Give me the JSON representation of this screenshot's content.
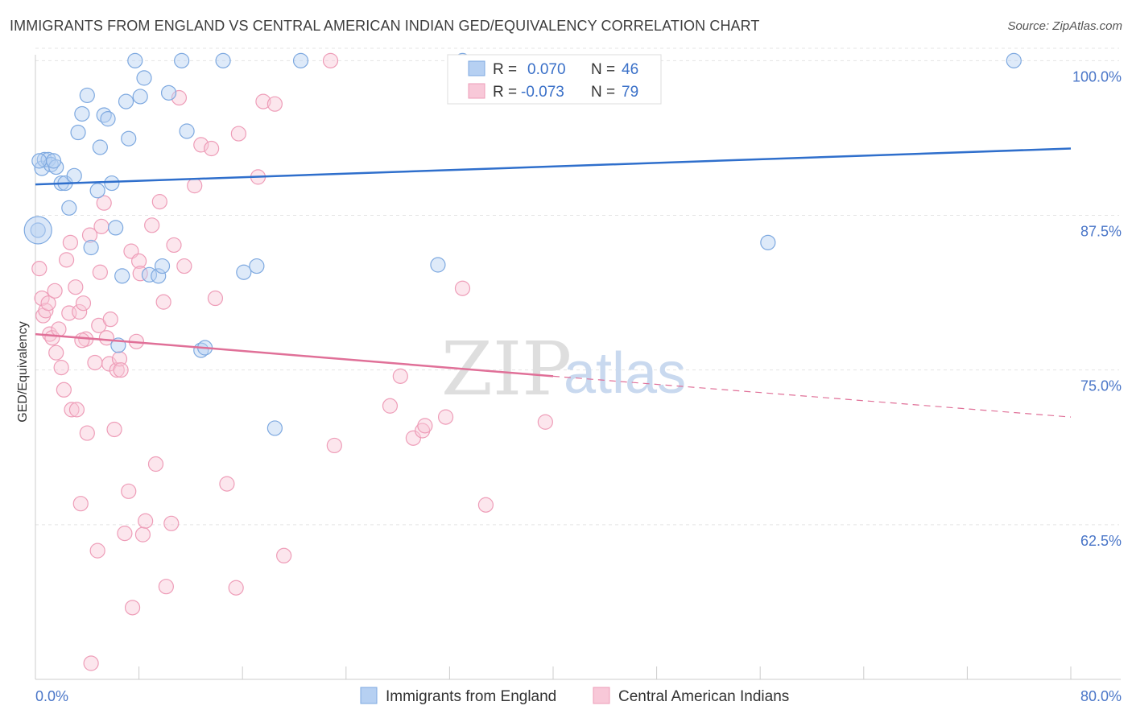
{
  "header": {
    "title": "IMMIGRANTS FROM ENGLAND VS CENTRAL AMERICAN INDIAN GED/EQUIVALENCY CORRELATION CHART",
    "source": "Source: ZipAtlas.com"
  },
  "watermark": {
    "zip": "ZIP",
    "atlas": "atlas"
  },
  "legend": {
    "r_label": "R =",
    "n_label": "N =",
    "rows": [
      {
        "r": "0.070",
        "n": "46"
      },
      {
        "r": "-0.073",
        "n": "79"
      }
    ]
  },
  "chart_data": {
    "type": "scatter",
    "title": "IMMIGRANTS FROM ENGLAND VS CENTRAL AMERICAN INDIAN GED/EQUIVALENCY CORRELATION CHART",
    "xlabel": "",
    "ylabel": "GED/Equivalency",
    "xlim": [
      0,
      80
    ],
    "ylim": [
      50,
      101
    ],
    "x_tick_labels": [
      "0.0%",
      "80.0%"
    ],
    "y_ticks": [
      62.5,
      75.0,
      87.5,
      100.0
    ],
    "y_tick_labels": [
      "62.5%",
      "75.0%",
      "87.5%",
      "100.0%"
    ],
    "grid": true,
    "legend_position": "top-center",
    "series": [
      {
        "name": "Immigrants from England",
        "color": "#7eaee6",
        "line_color": "#2f6fcc",
        "r": 0.07,
        "n": 46,
        "trend": {
          "x": [
            0,
            80
          ],
          "y": [
            90.0,
            92.9
          ]
        },
        "points": [
          [
            0.2,
            86.3
          ],
          [
            0.5,
            91.3
          ],
          [
            0.7,
            92.0
          ],
          [
            1.0,
            92.0
          ],
          [
            1.2,
            91.6
          ],
          [
            1.6,
            91.4
          ],
          [
            2.0,
            90.1
          ],
          [
            2.3,
            90.1
          ],
          [
            2.6,
            88.1
          ],
          [
            3.0,
            90.7
          ],
          [
            3.3,
            94.2
          ],
          [
            3.6,
            95.7
          ],
          [
            4.0,
            97.2
          ],
          [
            4.3,
            84.9
          ],
          [
            4.8,
            89.5
          ],
          [
            5.0,
            93.0
          ],
          [
            5.3,
            95.6
          ],
          [
            5.6,
            95.3
          ],
          [
            5.9,
            90.1
          ],
          [
            6.2,
            86.5
          ],
          [
            6.4,
            77.0
          ],
          [
            6.7,
            82.6
          ],
          [
            7.2,
            93.7
          ],
          [
            7.0,
            96.7
          ],
          [
            7.7,
            100.0
          ],
          [
            8.1,
            97.1
          ],
          [
            8.4,
            98.6
          ],
          [
            8.8,
            82.7
          ],
          [
            9.5,
            82.6
          ],
          [
            9.8,
            83.4
          ],
          [
            10.3,
            97.4
          ],
          [
            11.3,
            100.0
          ],
          [
            11.7,
            94.3
          ],
          [
            12.8,
            76.6
          ],
          [
            13.1,
            76.8
          ],
          [
            14.5,
            100.0
          ],
          [
            16.1,
            82.9
          ],
          [
            17.1,
            83.4
          ],
          [
            18.5,
            70.3
          ],
          [
            20.5,
            100.0
          ],
          [
            31.1,
            83.5
          ],
          [
            33.0,
            100.0
          ],
          [
            56.6,
            85.3
          ],
          [
            75.6,
            100.0
          ],
          [
            0.3,
            91.9
          ],
          [
            1.4,
            91.9
          ]
        ]
      },
      {
        "name": "Central American Indians",
        "color": "#f4a8c0",
        "line_color": "#e07098",
        "r": -0.073,
        "n": 79,
        "trend": {
          "x": [
            0,
            40,
            80
          ],
          "y": [
            77.9,
            74.5,
            71.2
          ],
          "solid_until": 40
        },
        "points": [
          [
            0.3,
            83.2
          ],
          [
            0.5,
            80.8
          ],
          [
            0.6,
            79.4
          ],
          [
            0.8,
            79.8
          ],
          [
            1.0,
            80.4
          ],
          [
            1.1,
            77.9
          ],
          [
            1.3,
            77.6
          ],
          [
            1.5,
            81.4
          ],
          [
            1.6,
            76.4
          ],
          [
            1.8,
            78.3
          ],
          [
            2.0,
            75.2
          ],
          [
            2.2,
            73.4
          ],
          [
            2.4,
            83.9
          ],
          [
            2.6,
            79.6
          ],
          [
            2.7,
            85.3
          ],
          [
            2.8,
            71.8
          ],
          [
            3.1,
            81.7
          ],
          [
            3.2,
            71.8
          ],
          [
            3.4,
            79.7
          ],
          [
            3.5,
            64.2
          ],
          [
            3.7,
            80.4
          ],
          [
            3.9,
            77.5
          ],
          [
            4.0,
            69.9
          ],
          [
            4.2,
            85.9
          ],
          [
            4.3,
            51.3
          ],
          [
            4.6,
            75.6
          ],
          [
            4.8,
            60.4
          ],
          [
            4.9,
            78.6
          ],
          [
            5.0,
            82.9
          ],
          [
            5.1,
            86.6
          ],
          [
            5.3,
            88.5
          ],
          [
            5.5,
            77.6
          ],
          [
            5.7,
            75.5
          ],
          [
            5.8,
            79.1
          ],
          [
            6.1,
            70.2
          ],
          [
            6.3,
            75.0
          ],
          [
            6.5,
            75.9
          ],
          [
            6.6,
            75.0
          ],
          [
            6.9,
            61.8
          ],
          [
            7.2,
            65.2
          ],
          [
            7.4,
            84.6
          ],
          [
            7.5,
            55.8
          ],
          [
            7.8,
            77.3
          ],
          [
            8.0,
            83.8
          ],
          [
            8.1,
            82.8
          ],
          [
            8.3,
            61.7
          ],
          [
            8.5,
            62.8
          ],
          [
            9.0,
            86.7
          ],
          [
            9.3,
            67.4
          ],
          [
            9.6,
            88.6
          ],
          [
            9.9,
            80.5
          ],
          [
            10.1,
            57.5
          ],
          [
            10.5,
            62.6
          ],
          [
            10.7,
            85.1
          ],
          [
            11.1,
            97.0
          ],
          [
            11.5,
            83.4
          ],
          [
            12.3,
            89.9
          ],
          [
            12.8,
            93.2
          ],
          [
            13.6,
            92.9
          ],
          [
            13.9,
            80.8
          ],
          [
            14.8,
            65.8
          ],
          [
            15.5,
            57.4
          ],
          [
            15.7,
            94.1
          ],
          [
            17.2,
            90.6
          ],
          [
            17.6,
            96.7
          ],
          [
            18.5,
            96.5
          ],
          [
            19.2,
            60.0
          ],
          [
            22.8,
            100.0
          ],
          [
            23.1,
            68.9
          ],
          [
            27.4,
            72.1
          ],
          [
            28.2,
            74.5
          ],
          [
            29.2,
            69.5
          ],
          [
            29.9,
            70.1
          ],
          [
            30.1,
            70.5
          ],
          [
            31.7,
            71.2
          ],
          [
            33.0,
            81.6
          ],
          [
            34.8,
            64.1
          ],
          [
            39.4,
            70.8
          ],
          [
            3.6,
            77.4
          ]
        ]
      }
    ]
  }
}
